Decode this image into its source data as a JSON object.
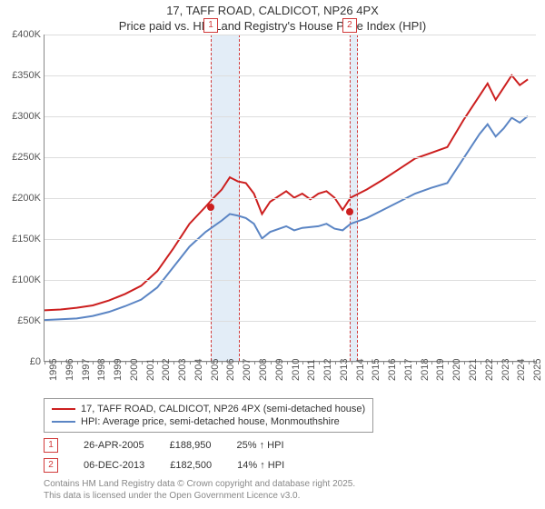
{
  "title_line1": "17, TAFF ROAD, CALDICOT, NP26 4PX",
  "title_line2": "Price paid vs. HM Land Registry's House Price Index (HPI)",
  "chart": {
    "type": "line",
    "background_color": "#ffffff",
    "grid_color": "#dddddd",
    "axis_color": "#888888",
    "band_fill": "#e3edf7",
    "band_border": "#d13a3a",
    "x_years": [
      1995,
      1996,
      1997,
      1998,
      1999,
      2000,
      2001,
      2002,
      2003,
      2004,
      2005,
      2006,
      2007,
      2008,
      2009,
      2010,
      2011,
      2012,
      2013,
      2014,
      2015,
      2016,
      2017,
      2018,
      2019,
      2020,
      2021,
      2022,
      2023,
      2024,
      2025
    ],
    "xlim": [
      1995,
      2025.5
    ],
    "ylim": [
      0,
      400
    ],
    "ytick_step": 50,
    "y_labels": [
      "£0",
      "£50K",
      "£100K",
      "£150K",
      "£200K",
      "£250K",
      "£300K",
      "£350K",
      "£400K"
    ],
    "label_fontsize": 11,
    "series": [
      {
        "name": "17, TAFF ROAD, CALDICOT, NP26 4PX (semi-detached house)",
        "color": "#cc1f1f",
        "line_width": 2,
        "data": [
          [
            1995,
            62
          ],
          [
            1996,
            63
          ],
          [
            1997,
            65
          ],
          [
            1998,
            68
          ],
          [
            1999,
            74
          ],
          [
            2000,
            82
          ],
          [
            2001,
            92
          ],
          [
            2002,
            110
          ],
          [
            2003,
            138
          ],
          [
            2004,
            168
          ],
          [
            2005,
            189
          ],
          [
            2005.5,
            200
          ],
          [
            2006,
            210
          ],
          [
            2006.5,
            225
          ],
          [
            2007,
            220
          ],
          [
            2007.5,
            218
          ],
          [
            2008,
            205
          ],
          [
            2008.5,
            180
          ],
          [
            2009,
            195
          ],
          [
            2010,
            208
          ],
          [
            2010.5,
            200
          ],
          [
            2011,
            205
          ],
          [
            2011.5,
            198
          ],
          [
            2012,
            205
          ],
          [
            2012.5,
            208
          ],
          [
            2013,
            200
          ],
          [
            2013.5,
            185
          ],
          [
            2014,
            200
          ],
          [
            2015,
            210
          ],
          [
            2016,
            222
          ],
          [
            2017,
            235
          ],
          [
            2018,
            248
          ],
          [
            2019,
            255
          ],
          [
            2020,
            262
          ],
          [
            2021,
            295
          ],
          [
            2022,
            325
          ],
          [
            2022.5,
            340
          ],
          [
            2023,
            320
          ],
          [
            2023.5,
            335
          ],
          [
            2024,
            350
          ],
          [
            2024.5,
            338
          ],
          [
            2025,
            345
          ]
        ]
      },
      {
        "name": "HPI: Average price, semi-detached house, Monmouthshire",
        "color": "#5b85c4",
        "line_width": 2,
        "data": [
          [
            1995,
            50
          ],
          [
            1996,
            51
          ],
          [
            1997,
            52
          ],
          [
            1998,
            55
          ],
          [
            1999,
            60
          ],
          [
            2000,
            67
          ],
          [
            2001,
            75
          ],
          [
            2002,
            90
          ],
          [
            2003,
            115
          ],
          [
            2004,
            140
          ],
          [
            2005,
            158
          ],
          [
            2006,
            172
          ],
          [
            2006.5,
            180
          ],
          [
            2007,
            178
          ],
          [
            2007.5,
            175
          ],
          [
            2008,
            168
          ],
          [
            2008.5,
            150
          ],
          [
            2009,
            158
          ],
          [
            2010,
            165
          ],
          [
            2010.5,
            160
          ],
          [
            2011,
            163
          ],
          [
            2012,
            165
          ],
          [
            2012.5,
            168
          ],
          [
            2013,
            162
          ],
          [
            2013.5,
            160
          ],
          [
            2014,
            168
          ],
          [
            2015,
            175
          ],
          [
            2016,
            185
          ],
          [
            2017,
            195
          ],
          [
            2018,
            205
          ],
          [
            2019,
            212
          ],
          [
            2020,
            218
          ],
          [
            2021,
            248
          ],
          [
            2022,
            278
          ],
          [
            2022.5,
            290
          ],
          [
            2023,
            275
          ],
          [
            2023.5,
            285
          ],
          [
            2024,
            298
          ],
          [
            2024.5,
            292
          ],
          [
            2025,
            300
          ]
        ]
      }
    ],
    "sale_bands": [
      {
        "marker": "1",
        "start": 2005.3,
        "end": 2007.0
      },
      {
        "marker": "2",
        "start": 2013.9,
        "end": 2014.3
      }
    ],
    "sale_points": [
      {
        "year": 2005.3,
        "value": 189,
        "color": "#cc1f1f"
      },
      {
        "year": 2013.9,
        "value": 183,
        "color": "#cc1f1f"
      }
    ]
  },
  "legend": {
    "series1": "17, TAFF ROAD, CALDICOT, NP26 4PX (semi-detached house)",
    "series2": "HPI: Average price, semi-detached house, Monmouthshire"
  },
  "sales": [
    {
      "marker": "1",
      "date": "26-APR-2005",
      "price": "£188,950",
      "delta": "25% ↑ HPI"
    },
    {
      "marker": "2",
      "date": "06-DEC-2013",
      "price": "£182,500",
      "delta": "14% ↑ HPI"
    }
  ],
  "license_line1": "Contains HM Land Registry data © Crown copyright and database right 2025.",
  "license_line2": "This data is licensed under the Open Government Licence v3.0."
}
